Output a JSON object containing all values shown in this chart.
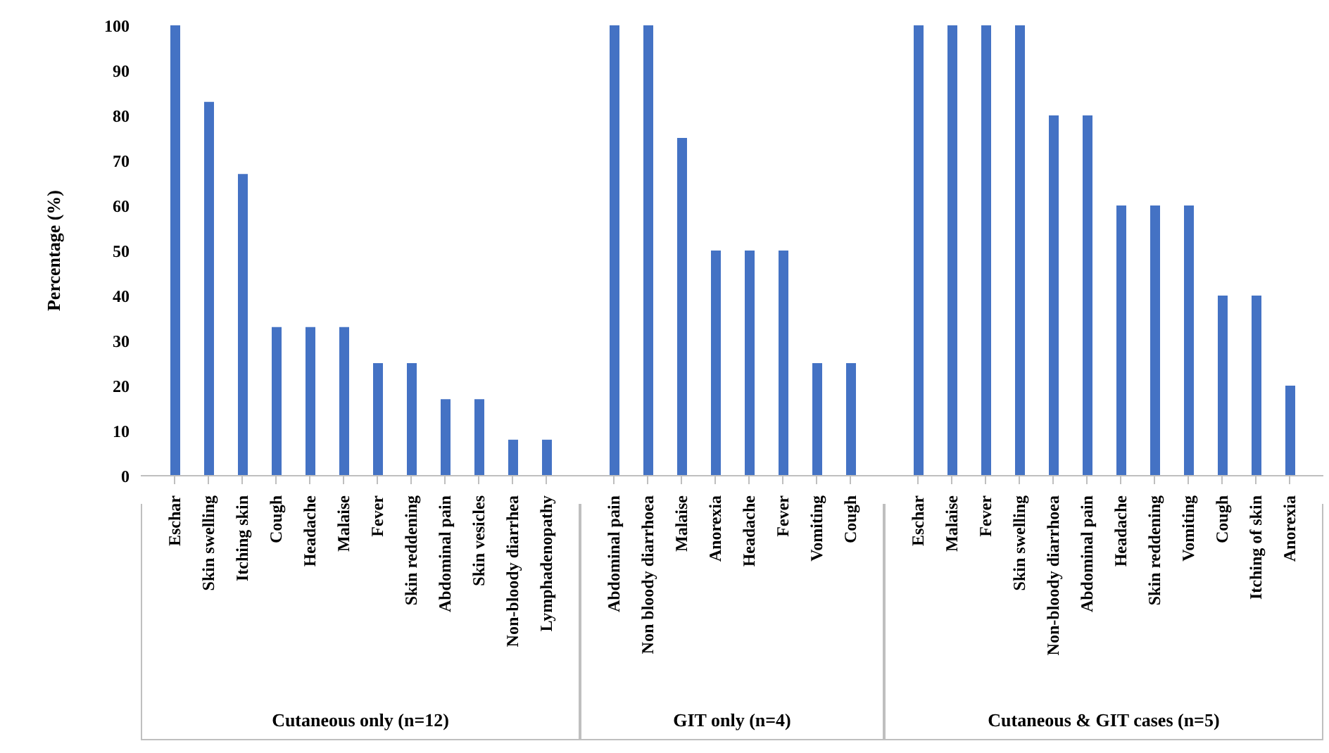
{
  "chart_data": [
    {
      "type": "bar",
      "ylabel": "Percentage (%)",
      "xlabel": "Cutaneous only (n=12)",
      "categories": [
        "Eschar",
        "Skin swelling",
        "Itching skin",
        "Cough",
        "Headache",
        "Malaise",
        "Fever",
        "Skin reddening",
        "Abdominal pain",
        "Skin vesicles",
        "Non-bloody diarrhea",
        "Lymphadenopathy"
      ],
      "values": [
        100,
        83,
        67,
        33,
        33,
        33,
        25,
        25,
        17,
        17,
        8,
        8
      ],
      "color": "#4472c4",
      "ylim": [
        0,
        100
      ],
      "yticks": [
        0,
        10,
        20,
        30,
        40,
        50,
        60,
        70,
        80,
        90,
        100
      ]
    },
    {
      "type": "bar",
      "xlabel": "GIT only (n=4)",
      "categories": [
        "Abdominal pain",
        "Non bloody diarrhoea",
        "Malaise",
        "Anorexia",
        "Headache",
        "Fever",
        "Vomiting",
        "Cough"
      ],
      "values": [
        100,
        100,
        75,
        50,
        50,
        50,
        25,
        25
      ],
      "color": "#4472c4",
      "ylim": [
        0,
        100
      ],
      "yticks": [
        0,
        10,
        20,
        30,
        40,
        50,
        60,
        70,
        80,
        90,
        100
      ],
      "tick_labels": "x"
    },
    {
      "type": "bar",
      "xlabel": "Cutaneous & GIT cases (n=5)",
      "categories": [
        "Eschar",
        "Malaise",
        "Fever",
        "Skin swelling",
        "Non-bloody diarrhoea",
        "Abdominal pain",
        "Headache",
        "Skin reddening",
        "Vomiting",
        "Cough",
        "Itching of skin",
        "Anorexia"
      ],
      "values": [
        100,
        100,
        100,
        100,
        80,
        80,
        60,
        60,
        60,
        40,
        40,
        20
      ],
      "color": "#4472c4",
      "ylim": [
        0,
        100
      ],
      "yticks": [
        0,
        10,
        20,
        30,
        40,
        50,
        60,
        70,
        80,
        90,
        100
      ],
      "tick_labels": "x"
    }
  ]
}
